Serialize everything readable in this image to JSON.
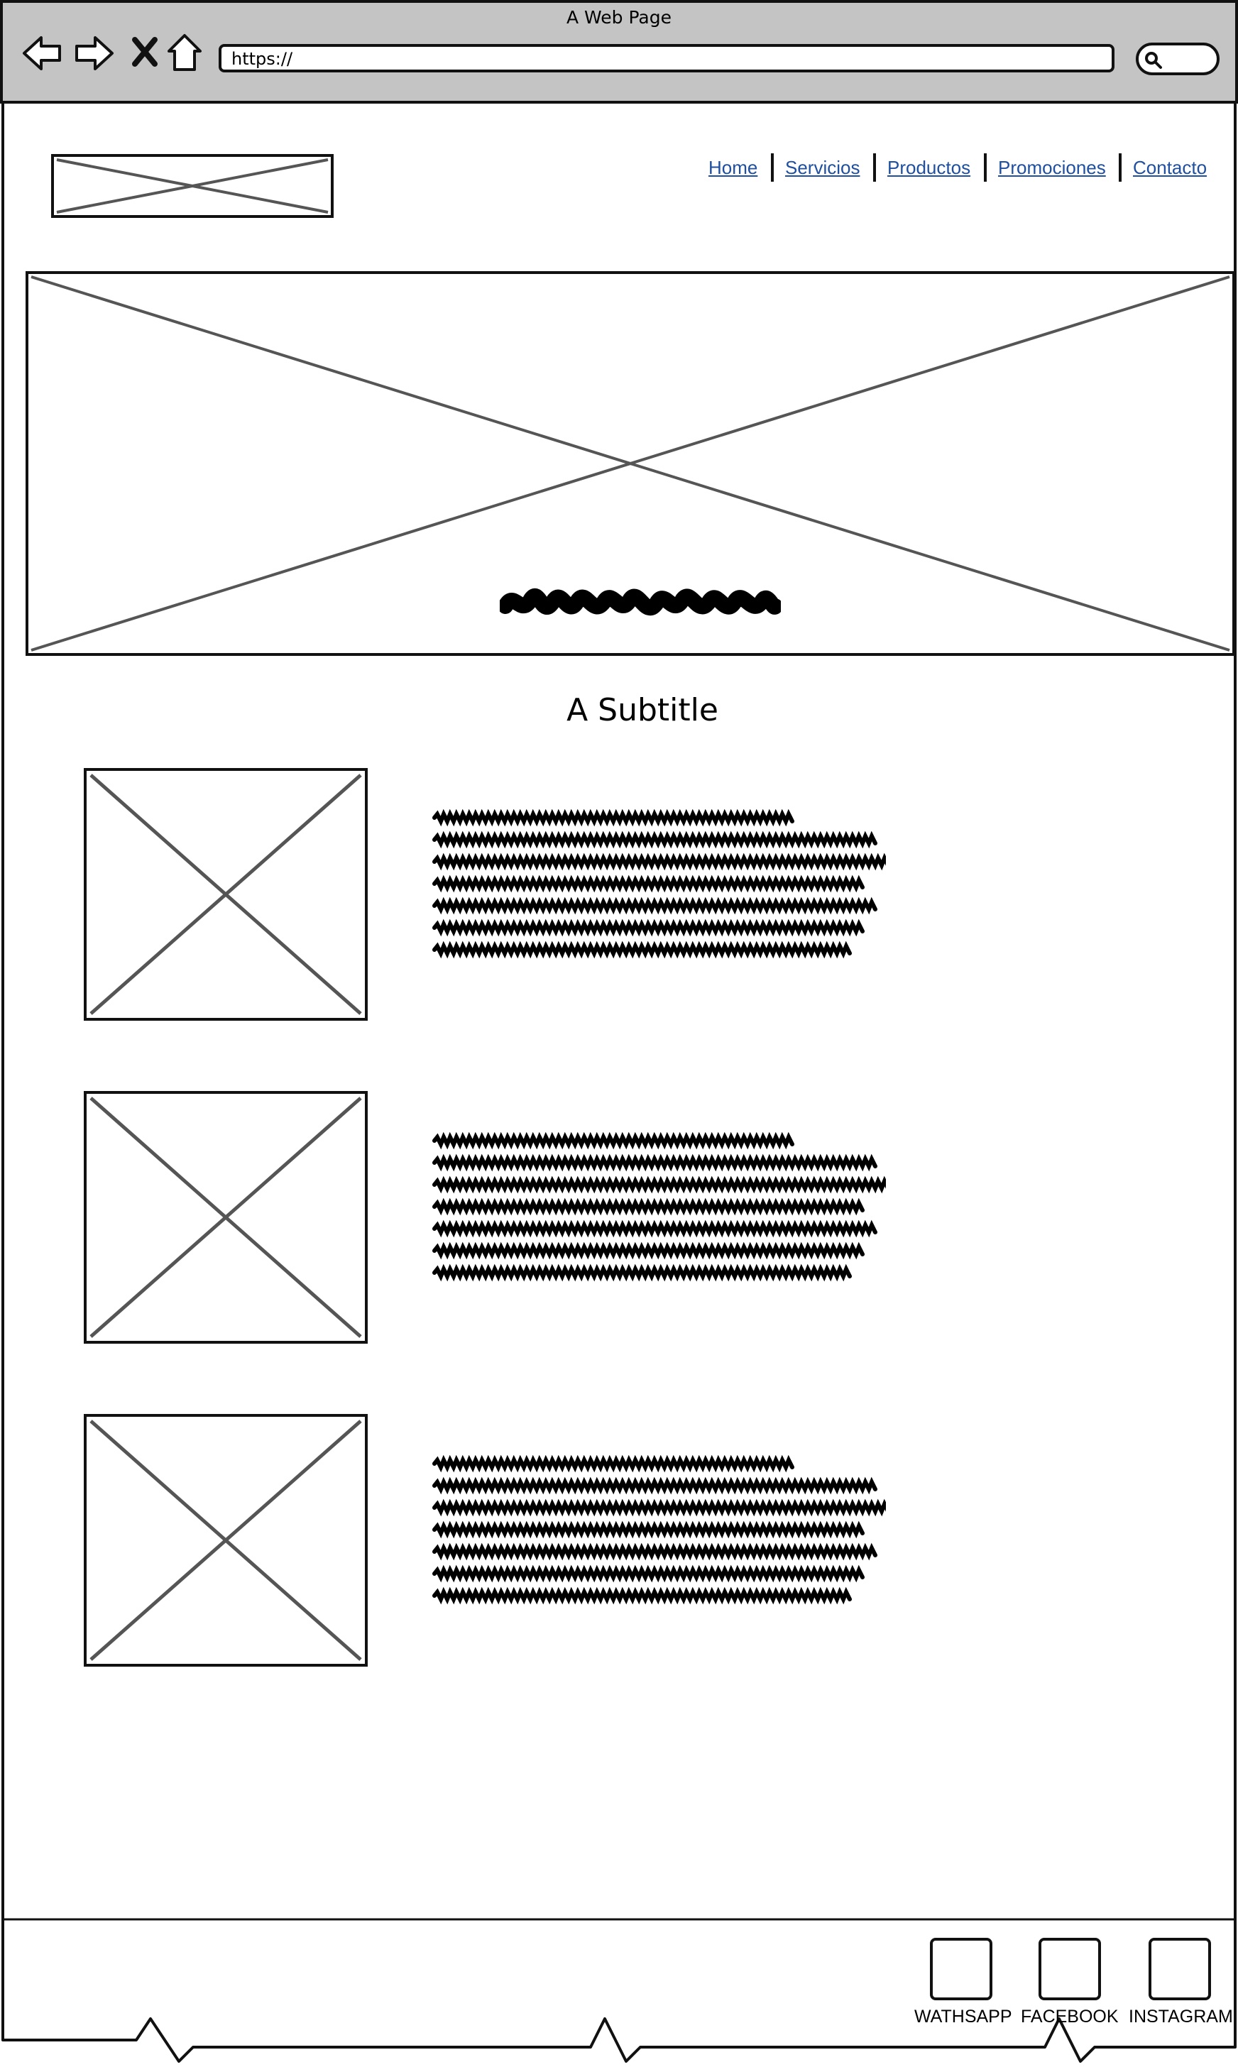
{
  "browser": {
    "window_title": "A Web Page",
    "url": "https://",
    "buttons": [
      "back",
      "forward",
      "stop",
      "home"
    ]
  },
  "header": {
    "logo": "logo-placeholder",
    "nav": [
      {
        "label": "Home"
      },
      {
        "label": "Servicios"
      },
      {
        "label": "Productos"
      },
      {
        "label": "Promociones"
      },
      {
        "label": "Contacto"
      }
    ]
  },
  "hero": {
    "image": "image-placeholder",
    "caption": "scribble-text"
  },
  "main": {
    "subtitle": "A Subtitle",
    "items": [
      {
        "image": "image-placeholder",
        "text": "scribble-text"
      },
      {
        "image": "image-placeholder",
        "text": "scribble-text"
      },
      {
        "image": "image-placeholder",
        "text": "scribble-text"
      }
    ]
  },
  "footer": {
    "social": [
      {
        "label": "WATHSAPP"
      },
      {
        "label": "FACEBOOK"
      },
      {
        "label": "INSTAGRAM"
      }
    ]
  },
  "colors": {
    "chrome": "#c4c4c4",
    "link": "#1f4fa0",
    "stroke": "#111111",
    "placeholder_x": "#555555"
  }
}
